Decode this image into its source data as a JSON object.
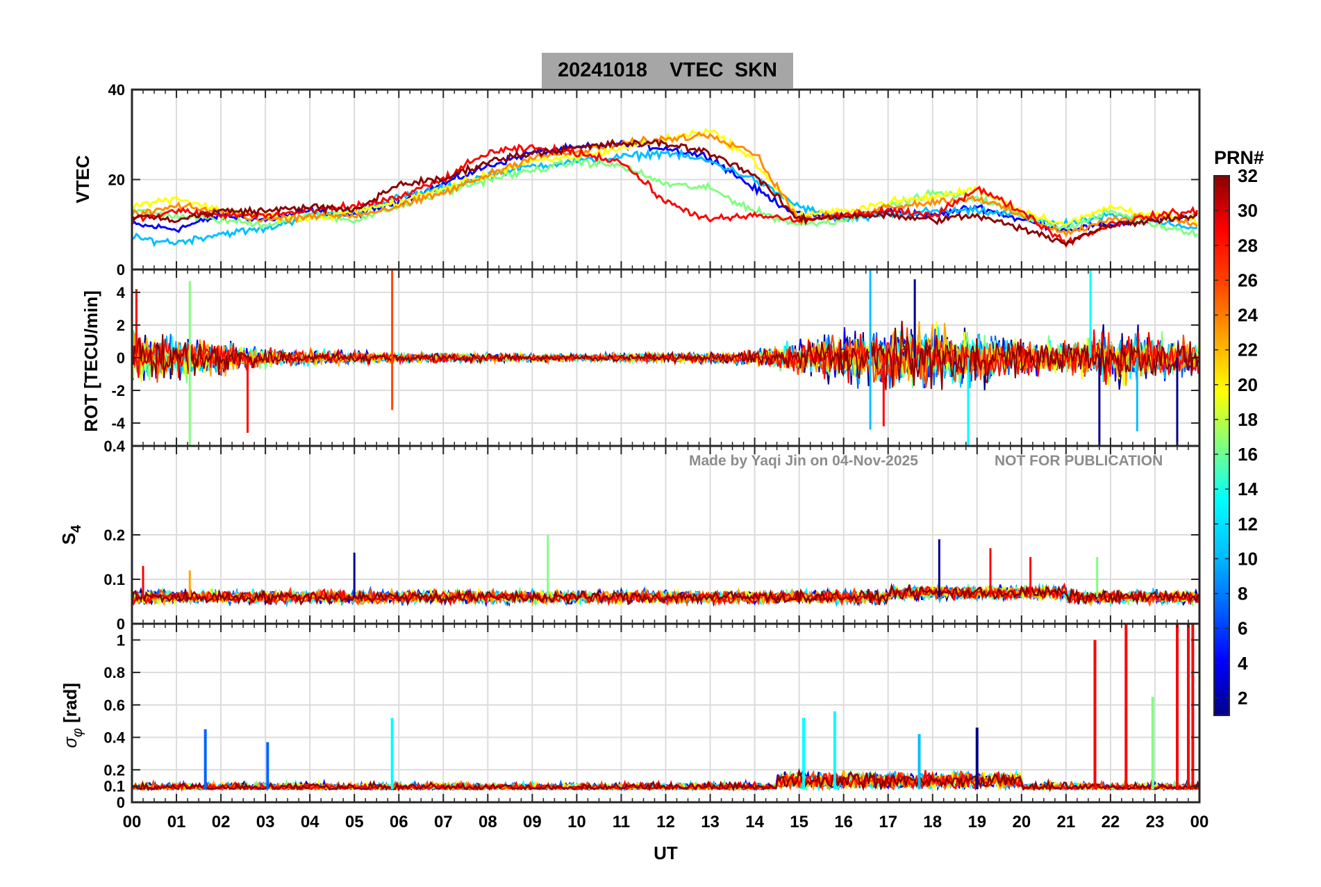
{
  "title": "20241018    VTEC  SKN",
  "watermark": {
    "author": "Made by Yaqi Jin on 04-Nov-2025",
    "notice": "NOT FOR PUBLICATION"
  },
  "chart_data": [
    {
      "type": "line",
      "panel": "vtec",
      "ylabel": "VTEC",
      "ylim": [
        0,
        40
      ],
      "yticks": [
        "0",
        "20",
        "40"
      ],
      "grid": true,
      "x_range_hours": [
        0,
        24
      ],
      "series": [
        {
          "color": "#0000ff",
          "x": [
            0,
            1,
            2,
            3,
            4,
            5,
            6,
            7,
            8,
            9,
            10,
            11,
            12,
            13,
            14,
            15,
            16,
            17,
            18,
            19,
            20,
            21,
            22,
            23,
            24
          ],
          "values": [
            10,
            9,
            12,
            11,
            13,
            12,
            15,
            19,
            23,
            26,
            27,
            28,
            27,
            25,
            18,
            12,
            12,
            13,
            12,
            14,
            11,
            9,
            10,
            11,
            12
          ]
        },
        {
          "color": "#00bfff",
          "x": [
            0,
            1,
            2,
            3,
            4,
            5,
            6,
            7,
            8,
            9,
            10,
            11,
            12,
            13,
            14,
            15,
            16,
            17,
            18,
            19,
            20,
            21,
            22,
            23,
            24
          ],
          "values": [
            7,
            6,
            8,
            9,
            12,
            13,
            16,
            18,
            21,
            23,
            24,
            25,
            26,
            24,
            20,
            14,
            11,
            12,
            13,
            13,
            12,
            10,
            12,
            11,
            9
          ]
        },
        {
          "color": "#7fff7f",
          "x": [
            0,
            1,
            2,
            3,
            4,
            5,
            6,
            7,
            8,
            9,
            10,
            11,
            12,
            13,
            14,
            15,
            16,
            17,
            18,
            19,
            20,
            21,
            22,
            23,
            24
          ],
          "values": [
            13,
            12,
            11,
            10,
            12,
            11,
            14,
            17,
            20,
            22,
            24,
            23,
            19,
            18,
            13,
            10,
            11,
            14,
            17,
            16,
            12,
            9,
            13,
            10,
            8
          ]
        },
        {
          "color": "#ffff00",
          "x": [
            0,
            1,
            2,
            3,
            4,
            5,
            6,
            7,
            8,
            9,
            10,
            11,
            12,
            13,
            14,
            15,
            16,
            17,
            18,
            19,
            20,
            21,
            22,
            23,
            24
          ],
          "values": [
            14,
            16,
            13,
            12,
            11,
            13,
            15,
            18,
            21,
            24,
            25,
            27,
            29,
            31,
            24,
            12,
            13,
            15,
            16,
            18,
            13,
            10,
            14,
            12,
            11
          ]
        },
        {
          "color": "#ff8c00",
          "x": [
            0,
            1,
            2,
            3,
            4,
            5,
            6,
            7,
            8,
            9,
            10,
            11,
            12,
            13,
            14,
            15,
            16,
            17,
            18,
            19,
            20,
            21,
            22,
            23,
            24
          ],
          "values": [
            12,
            14,
            13,
            11,
            12,
            12,
            14,
            17,
            21,
            25,
            26,
            28,
            29,
            30,
            26,
            11,
            12,
            14,
            15,
            16,
            12,
            8,
            11,
            12,
            10
          ]
        },
        {
          "color": "#ff0000",
          "x": [
            0,
            1,
            2,
            3,
            4,
            5,
            6,
            7,
            8,
            9,
            10,
            11,
            12,
            13,
            14,
            15,
            16,
            17,
            18,
            19,
            20,
            21,
            22,
            23,
            24
          ],
          "values": [
            11,
            13,
            12,
            12,
            13,
            14,
            16,
            20,
            26,
            27,
            26,
            24,
            15,
            11,
            12,
            11,
            12,
            13,
            12,
            18,
            13,
            6,
            10,
            12,
            13
          ]
        },
        {
          "color": "#8b0000",
          "x": [
            0,
            1,
            2,
            3,
            4,
            5,
            6,
            7,
            8,
            9,
            10,
            11,
            12,
            13,
            14,
            15,
            16,
            17,
            18,
            19,
            20,
            21,
            22,
            23,
            24
          ],
          "values": [
            12,
            11,
            13,
            13,
            14,
            13,
            19,
            20,
            24,
            26,
            27,
            28,
            28,
            26,
            21,
            11,
            12,
            12,
            11,
            12,
            9,
            6,
            10,
            11,
            12
          ]
        }
      ]
    },
    {
      "type": "line",
      "panel": "rot",
      "ylabel": "ROT [TECU/min]",
      "ylim": [
        -5.4,
        5.4
      ],
      "yticks": [
        "-4",
        "-2",
        "0",
        "2",
        "4"
      ],
      "grid": true,
      "x_range_hours": [
        0,
        24
      ],
      "noise_amplitude": {
        "x": [
          0,
          1,
          2,
          3,
          4,
          5,
          6,
          7,
          8,
          9,
          10,
          11,
          12,
          13,
          14,
          15,
          16,
          17,
          18,
          19,
          20,
          21,
          22,
          23,
          24
        ],
        "values": [
          2.6,
          2.2,
          1.8,
          1.0,
          0.8,
          0.6,
          0.5,
          0.5,
          0.4,
          0.4,
          0.4,
          0.4,
          0.5,
          0.5,
          0.8,
          1.8,
          2.6,
          3.0,
          3.0,
          2.6,
          2.0,
          1.6,
          2.8,
          2.2,
          1.6
        ]
      },
      "spikes": [
        {
          "x": 0.1,
          "values": [
            4.2
          ]
        },
        {
          "x": 1.3,
          "values": [
            4.7,
            -5.4
          ]
        },
        {
          "x": 2.6,
          "values": [
            -4.6
          ]
        },
        {
          "x": 5.85,
          "values": [
            5.4,
            -3.2
          ]
        },
        {
          "x": 16.6,
          "values": [
            5.4,
            -4.4
          ]
        },
        {
          "x": 16.9,
          "values": [
            -4.2
          ]
        },
        {
          "x": 17.6,
          "values": [
            4.8
          ]
        },
        {
          "x": 18.8,
          "values": [
            -5.4
          ]
        },
        {
          "x": 21.55,
          "values": [
            5.4
          ]
        },
        {
          "x": 21.75,
          "values": [
            -5.4
          ]
        },
        {
          "x": 22.6,
          "values": [
            -4.5
          ]
        },
        {
          "x": 23.5,
          "values": [
            -5.4
          ]
        }
      ]
    },
    {
      "type": "line",
      "panel": "s4",
      "ylabel": "S4",
      "ylim": [
        0,
        0.4
      ],
      "yticks": [
        "0",
        "0.1",
        "0.2",
        "0.4"
      ],
      "grid": true,
      "x_range_hours": [
        0,
        24
      ],
      "baseline": 0.06,
      "spikes": [
        {
          "x": 0.25,
          "value": 0.13
        },
        {
          "x": 1.3,
          "value": 0.12
        },
        {
          "x": 5.0,
          "value": 0.16
        },
        {
          "x": 9.35,
          "value": 0.2
        },
        {
          "x": 18.15,
          "value": 0.19
        },
        {
          "x": 19.3,
          "value": 0.17
        },
        {
          "x": 20.2,
          "value": 0.15
        },
        {
          "x": 21.7,
          "value": 0.15
        }
      ]
    },
    {
      "type": "line",
      "panel": "sigma_phi",
      "ylabel": "σφ [rad]",
      "ylim": [
        0,
        1.1
      ],
      "yticks": [
        "0",
        "0.1",
        "0.2",
        "0.4",
        "0.6",
        "0.8",
        "1"
      ],
      "grid": true,
      "x_range_hours": [
        0,
        24
      ],
      "baseline": 0.08,
      "spikes": [
        {
          "x": 1.65,
          "value": 0.45
        },
        {
          "x": 3.05,
          "value": 0.37
        },
        {
          "x": 5.85,
          "value": 0.52
        },
        {
          "x": 15.1,
          "value": 0.52
        },
        {
          "x": 15.8,
          "value": 0.56
        },
        {
          "x": 17.7,
          "value": 0.42
        },
        {
          "x": 19.0,
          "value": 0.46
        },
        {
          "x": 21.65,
          "value": 1.0
        },
        {
          "x": 22.35,
          "value": 1.1
        },
        {
          "x": 22.95,
          "value": 0.65
        },
        {
          "x": 23.5,
          "value": 1.1
        },
        {
          "x": 23.75,
          "value": 1.1
        },
        {
          "x": 23.85,
          "value": 1.1
        }
      ]
    }
  ],
  "xaxis": {
    "label": "UT",
    "ticks": [
      "00",
      "01",
      "02",
      "03",
      "04",
      "05",
      "06",
      "07",
      "08",
      "09",
      "10",
      "11",
      "12",
      "13",
      "14",
      "15",
      "16",
      "17",
      "18",
      "19",
      "20",
      "21",
      "22",
      "23",
      "00"
    ]
  },
  "colorbar": {
    "title": "PRN#",
    "range": [
      1,
      32
    ],
    "ticks": [
      "2",
      "4",
      "6",
      "8",
      "10",
      "12",
      "14",
      "16",
      "18",
      "20",
      "22",
      "24",
      "26",
      "28",
      "30",
      "32"
    ]
  }
}
